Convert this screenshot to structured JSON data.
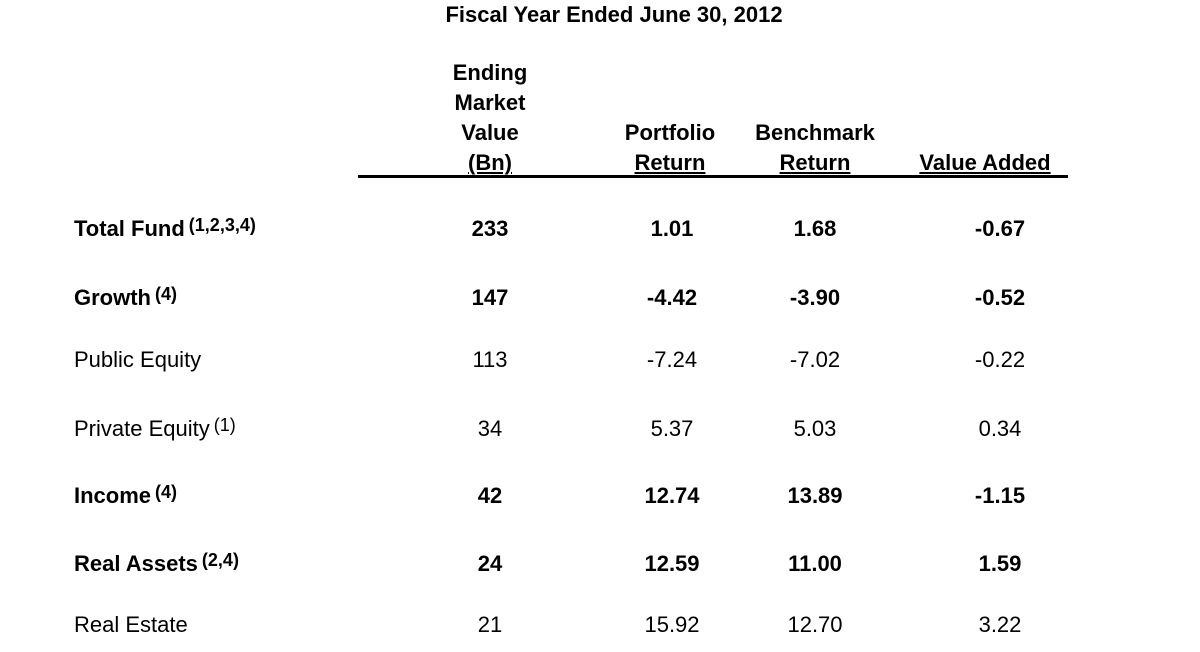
{
  "title": "Fiscal Year Ended June 30, 2012",
  "headers": {
    "market_value": [
      "Ending",
      "Market",
      "Value",
      "(Bn)"
    ],
    "portfolio_return": [
      "Portfolio",
      "Return"
    ],
    "benchmark_return": [
      "Benchmark",
      "Return"
    ],
    "value_added": [
      "Value Added"
    ]
  },
  "rows": [
    {
      "label": "Total Fund",
      "note": "(1,2,3,4)",
      "market_value": "233",
      "portfolio_return": "1.01",
      "benchmark_return": "1.68",
      "value_added": "-0.67"
    },
    {
      "label": "Growth",
      "note": "(4)",
      "market_value": "147",
      "portfolio_return": "-4.42",
      "benchmark_return": "-3.90",
      "value_added": "-0.52"
    },
    {
      "label": "Public Equity",
      "note": "",
      "market_value": "113",
      "portfolio_return": "-7.24",
      "benchmark_return": "-7.02",
      "value_added": "-0.22"
    },
    {
      "label": "Private Equity",
      "note": "(1)",
      "market_value": "34",
      "portfolio_return": "5.37",
      "benchmark_return": "5.03",
      "value_added": "0.34"
    },
    {
      "label": "Income",
      "note": "(4)",
      "market_value": "42",
      "portfolio_return": "12.74",
      "benchmark_return": "13.89",
      "value_added": "-1.15"
    },
    {
      "label": "Real Assets",
      "note": "(2,4)",
      "market_value": "24",
      "portfolio_return": "12.59",
      "benchmark_return": "11.00",
      "value_added": "1.59"
    },
    {
      "label": "Real Estate",
      "note": "",
      "market_value": "21",
      "portfolio_return": "15.92",
      "benchmark_return": "12.70",
      "value_added": "3.22"
    }
  ]
}
